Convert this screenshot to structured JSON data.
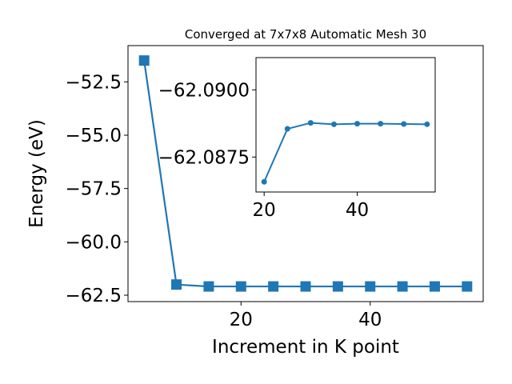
{
  "chart_data": [
    {
      "type": "line",
      "title": "Converged at 7x7x8 Automatic Mesh 30",
      "xlabel": "Increment in K point",
      "ylabel": "Energy (eV)",
      "x": [
        5,
        10,
        15,
        20,
        25,
        30,
        35,
        40,
        45,
        50,
        55
      ],
      "series": [
        {
          "values": [
            -51.5,
            -62.0,
            -62.09,
            -62.09,
            -62.09,
            -62.09,
            -62.09,
            -62.09,
            -62.09,
            -62.09,
            -62.09
          ]
        }
      ],
      "xlim": [
        2.5,
        57.5
      ],
      "ylim": [
        -62.8,
        -50.8
      ],
      "xticks": [
        20,
        40
      ],
      "xtick_labels": [
        "20",
        "40"
      ],
      "yticks": [
        -52.5,
        -55.0,
        -57.5,
        -60.0,
        -62.5
      ],
      "ytick_labels": [
        "−52.5",
        "−55.0",
        "−57.5",
        "−60.0",
        "−62.5"
      ],
      "marker": "square",
      "grid": false,
      "color": "#1f77b4"
    },
    {
      "type": "line",
      "title": "",
      "xlabel": "",
      "ylabel": "",
      "x": [
        20,
        25,
        30,
        35,
        40,
        45,
        50,
        55
      ],
      "series": [
        {
          "values": [
            -62.08658,
            -62.08855,
            -62.08877,
            -62.08872,
            -62.08874,
            -62.08874,
            -62.08873,
            -62.08872
          ]
        }
      ],
      "xlim": [
        18.25,
        56.75
      ],
      "ylim": [
        -62.0862,
        -62.0912
      ],
      "xticks": [
        20,
        40
      ],
      "xtick_labels": [
        "20",
        "40"
      ],
      "yticks": [
        -62.09,
        -62.0875
      ],
      "ytick_labels": [
        "−62.0900",
        "−62.0875"
      ],
      "marker": "circle",
      "grid": false,
      "color": "#1f77b4"
    }
  ]
}
